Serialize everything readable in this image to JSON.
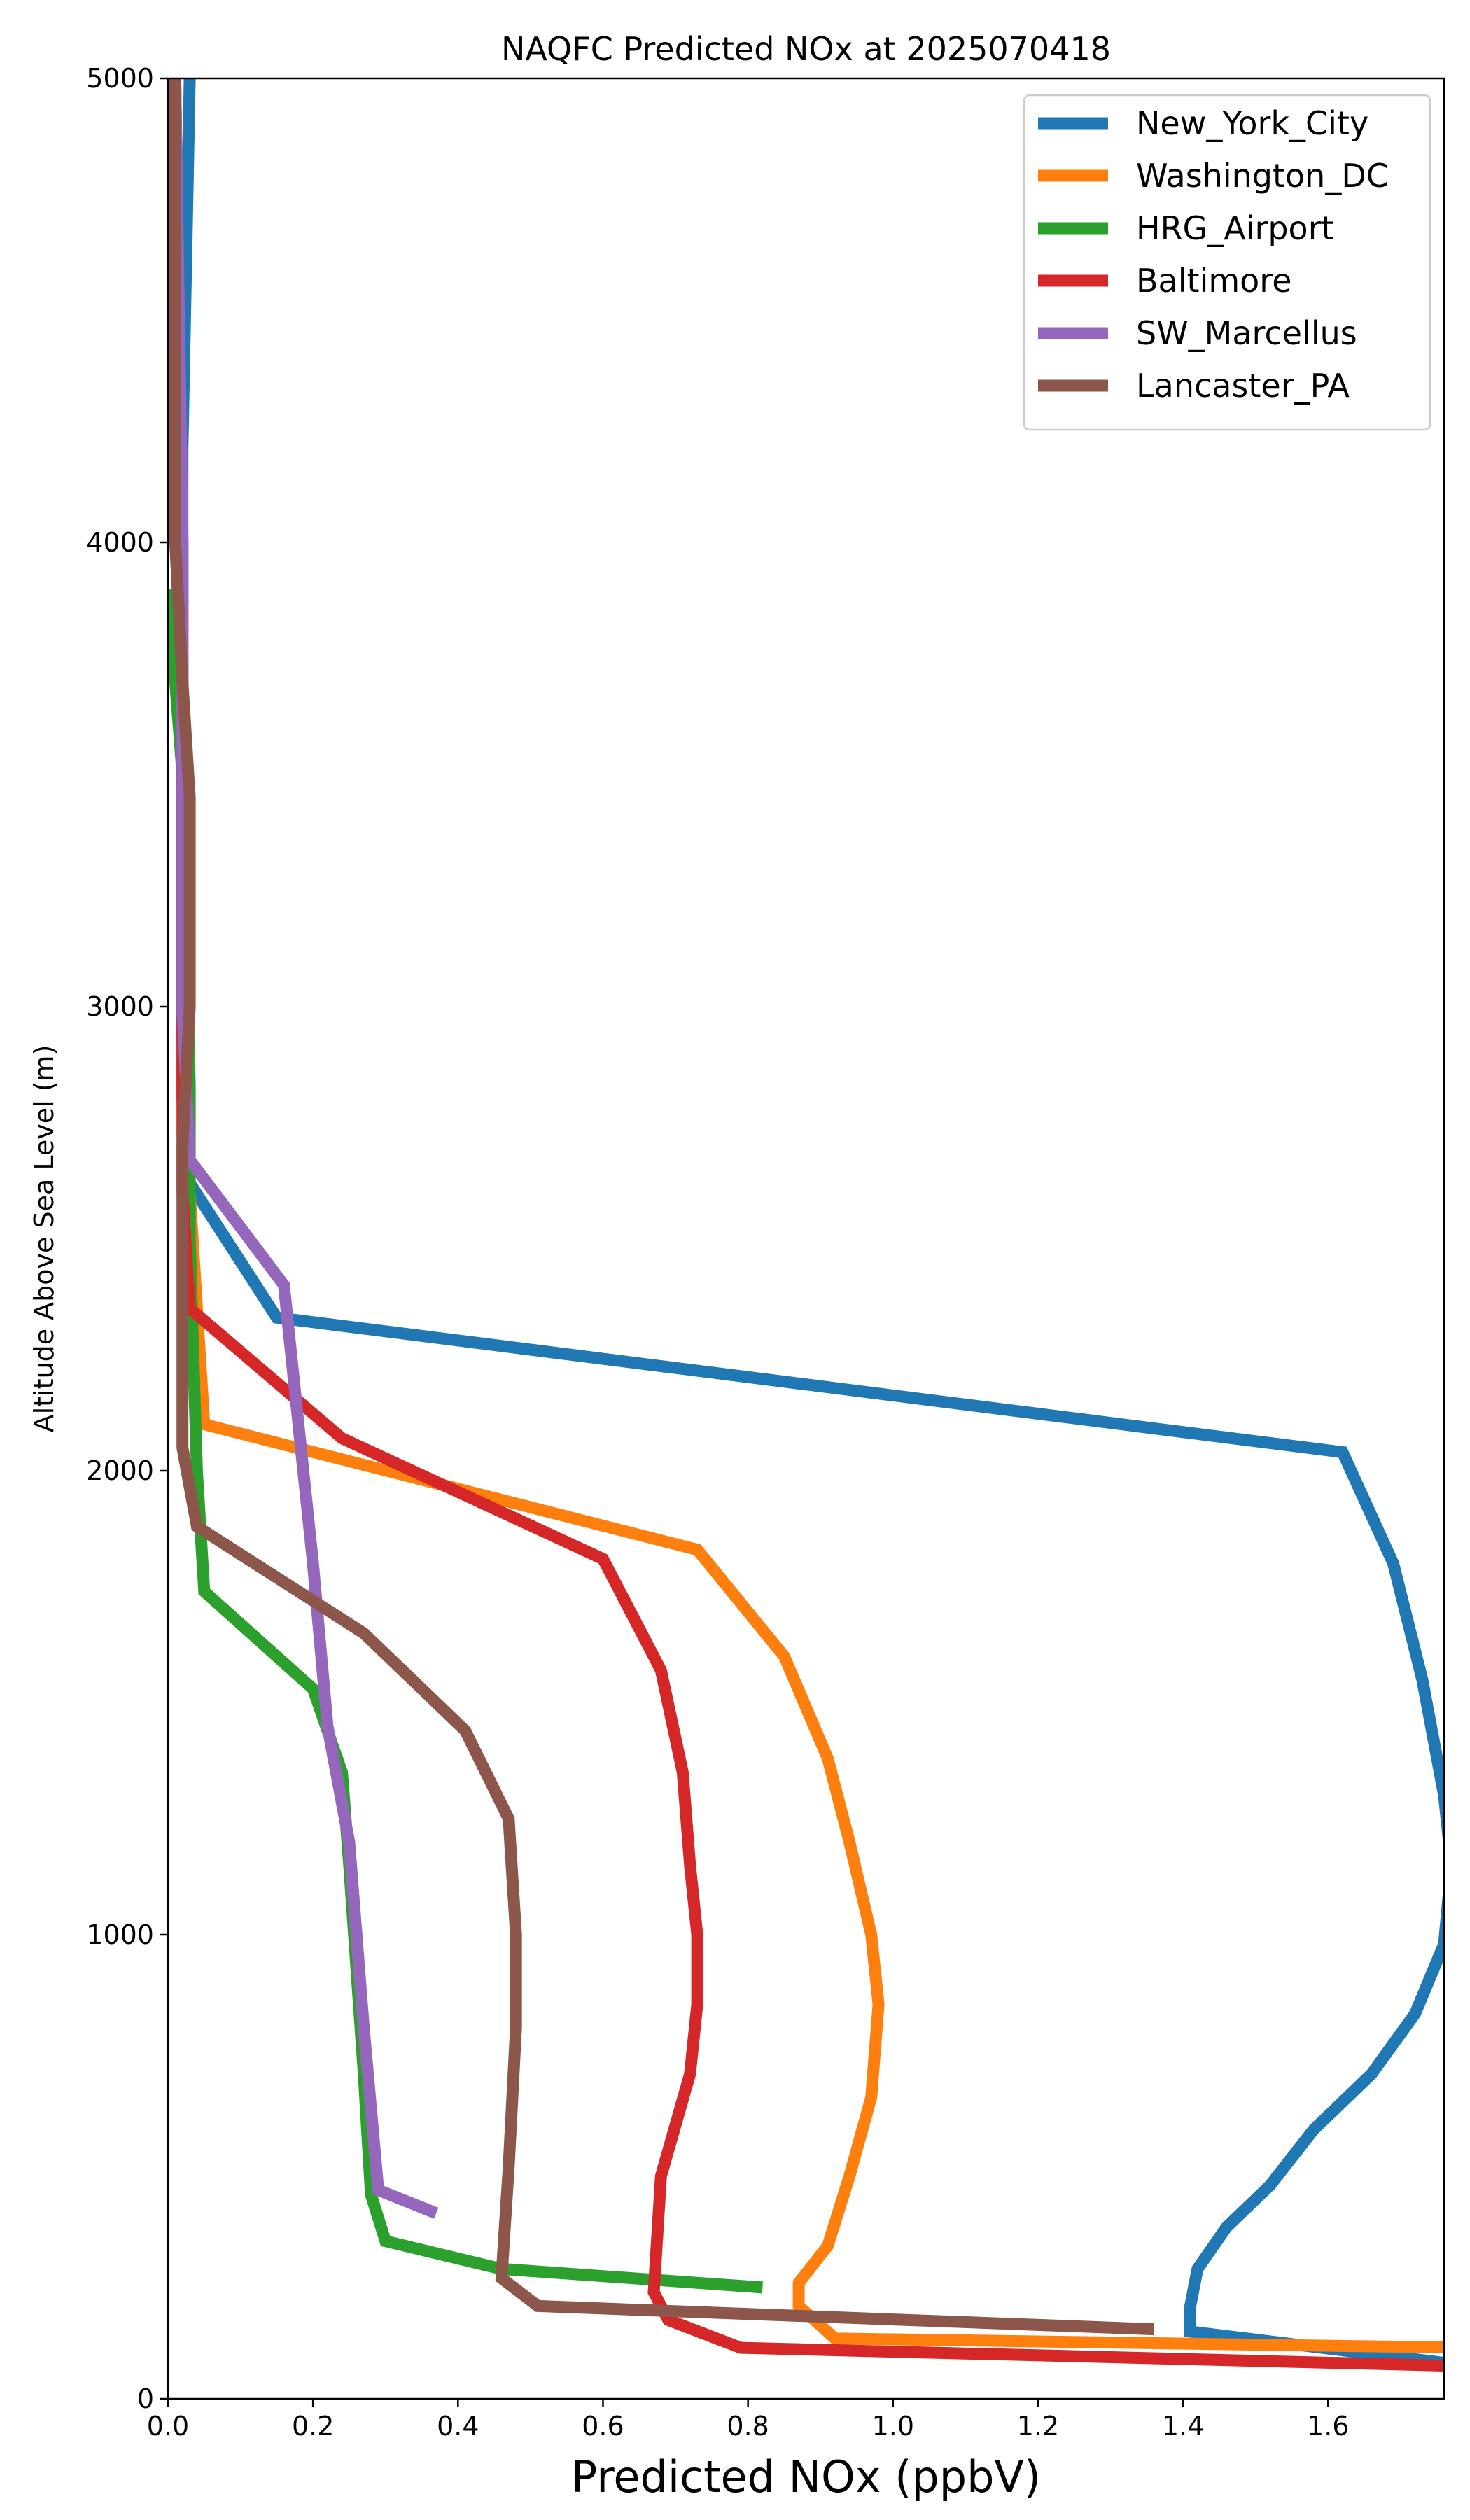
{
  "chart_data": {
    "type": "line",
    "title": "NAQFC Predicted NOx at 2025070418",
    "xlabel": "Predicted NOx (ppbV)",
    "ylabel": "Altitude Above Sea Level (m)",
    "xlim": [
      0,
      1.76
    ],
    "ylim": [
      0,
      5000
    ],
    "x_ticks": [
      "0.0",
      "0.2",
      "0.4",
      "0.6",
      "0.8",
      "1.0",
      "1.2",
      "1.4",
      "1.6"
    ],
    "y_ticks": [
      "0",
      "1000",
      "2000",
      "3000",
      "4000",
      "5000"
    ],
    "grid": false,
    "legend_position": "top-right",
    "series": [
      {
        "name": "New_York_City",
        "color": "#1f77b4",
        "points": [
          [
            1.8,
            70
          ],
          [
            1.41,
            145
          ],
          [
            1.41,
            200
          ],
          [
            1.42,
            280
          ],
          [
            1.46,
            370
          ],
          [
            1.52,
            460
          ],
          [
            1.58,
            580
          ],
          [
            1.66,
            700
          ],
          [
            1.72,
            830
          ],
          [
            1.76,
            980
          ],
          [
            1.77,
            1150
          ],
          [
            1.76,
            1300
          ],
          [
            1.73,
            1550
          ],
          [
            1.69,
            1800
          ],
          [
            1.62,
            2040
          ],
          [
            0.15,
            2330
          ],
          [
            0.03,
            2620
          ],
          [
            0.02,
            2800
          ],
          [
            0.02,
            3200
          ],
          [
            0.02,
            4200
          ],
          [
            0.03,
            5000
          ]
        ]
      },
      {
        "name": "Washington_DC",
        "color": "#ff7f0e",
        "points": [
          [
            1.8,
            110
          ],
          [
            0.92,
            130
          ],
          [
            0.87,
            200
          ],
          [
            0.87,
            250
          ],
          [
            0.91,
            330
          ],
          [
            0.94,
            480
          ],
          [
            0.97,
            650
          ],
          [
            0.98,
            850
          ],
          [
            0.97,
            1000
          ],
          [
            0.94,
            1200
          ],
          [
            0.91,
            1380
          ],
          [
            0.85,
            1600
          ],
          [
            0.73,
            1830
          ],
          [
            0.05,
            2100
          ],
          [
            0.03,
            2600
          ],
          [
            0.02,
            3000
          ],
          [
            0.02,
            4000
          ],
          [
            0.01,
            5000
          ]
        ]
      },
      {
        "name": "HRG_Airport",
        "color": "#2ca02c",
        "points": [
          [
            0.82,
            240
          ],
          [
            0.46,
            280
          ],
          [
            0.3,
            340
          ],
          [
            0.28,
            440
          ],
          [
            0.27,
            700
          ],
          [
            0.25,
            1150
          ],
          [
            0.24,
            1350
          ],
          [
            0.2,
            1530
          ],
          [
            0.05,
            1740
          ],
          [
            0.04,
            2000
          ],
          [
            0.03,
            2500
          ],
          [
            0.03,
            2830
          ],
          [
            0.02,
            3500
          ],
          [
            0.0,
            3900
          ]
        ]
      },
      {
        "name": "Baltimore",
        "color": "#d62728",
        "points": [
          [
            1.8,
            70
          ],
          [
            0.79,
            110
          ],
          [
            0.69,
            170
          ],
          [
            0.67,
            230
          ],
          [
            0.68,
            480
          ],
          [
            0.72,
            700
          ],
          [
            0.73,
            850
          ],
          [
            0.73,
            1000
          ],
          [
            0.72,
            1150
          ],
          [
            0.71,
            1350
          ],
          [
            0.68,
            1570
          ],
          [
            0.6,
            1810
          ],
          [
            0.24,
            2070
          ],
          [
            0.03,
            2350
          ],
          [
            0.02,
            2600
          ],
          [
            0.02,
            3000
          ],
          [
            0.02,
            4000
          ],
          [
            0.01,
            5000
          ]
        ]
      },
      {
        "name": "SW_Marcellus",
        "color": "#9467bd",
        "points": [
          [
            0.37,
            400
          ],
          [
            0.29,
            450
          ],
          [
            0.27,
            800
          ],
          [
            0.25,
            1200
          ],
          [
            0.22,
            1450
          ],
          [
            0.2,
            1800
          ],
          [
            0.18,
            2100
          ],
          [
            0.16,
            2400
          ],
          [
            0.03,
            2670
          ],
          [
            0.02,
            3000
          ],
          [
            0.02,
            4000
          ],
          [
            0.01,
            5000
          ]
        ]
      },
      {
        "name": "Lancaster_PA",
        "color": "#8c564b",
        "points": [
          [
            1.36,
            150
          ],
          [
            0.51,
            200
          ],
          [
            0.46,
            260
          ],
          [
            0.47,
            500
          ],
          [
            0.48,
            800
          ],
          [
            0.48,
            1000
          ],
          [
            0.47,
            1250
          ],
          [
            0.41,
            1440
          ],
          [
            0.27,
            1650
          ],
          [
            0.04,
            1880
          ],
          [
            0.02,
            2050
          ],
          [
            0.02,
            2300
          ],
          [
            0.02,
            2700
          ],
          [
            0.03,
            3000
          ],
          [
            0.03,
            3450
          ],
          [
            0.02,
            3700
          ],
          [
            0.01,
            4000
          ],
          [
            0.01,
            5000
          ]
        ]
      }
    ]
  }
}
